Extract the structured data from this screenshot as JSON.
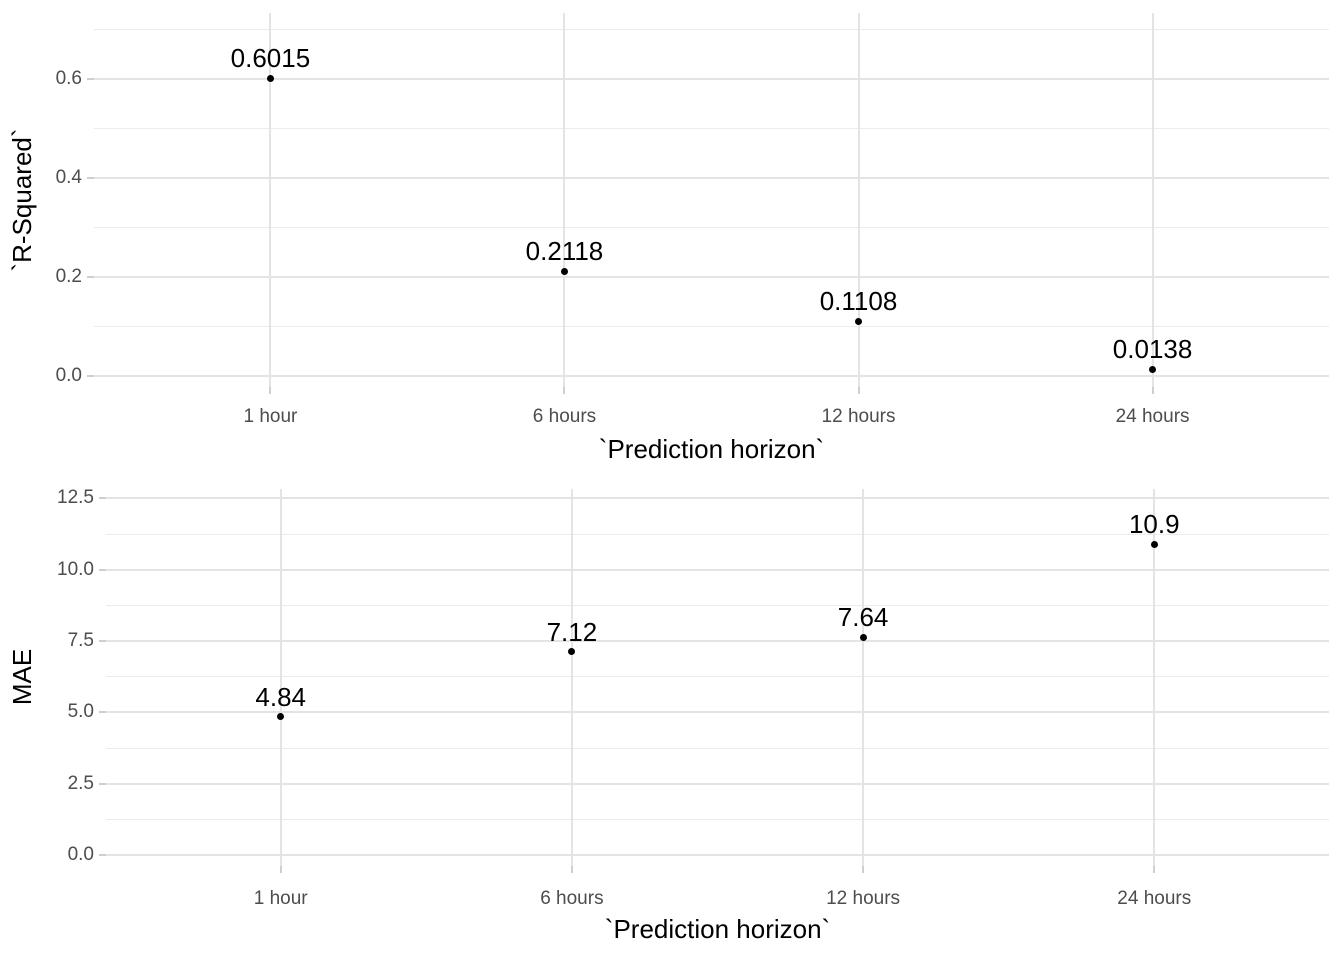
{
  "colors": {
    "background": "#ffffff",
    "grid_major": "#e4e4e4",
    "grid_minor": "#ececec",
    "tick_mark": "#cfcfcf",
    "tick_text": "#4d4d4d",
    "axis_title_text": "#000000",
    "point": "#000000",
    "point_label_text": "#000000"
  },
  "chart_data": [
    {
      "type": "scatter",
      "title": "",
      "xlabel": "`Prediction horizon`",
      "ylabel": "`R-Squared`",
      "categories": [
        "1 hour",
        "6 hours",
        "12 hours",
        "24 hours"
      ],
      "values": [
        0.6015,
        0.2118,
        0.1108,
        0.0138
      ],
      "point_labels": [
        "0.6015",
        "0.2118",
        "0.1108",
        "0.0138"
      ],
      "yticks": [
        0,
        0.2,
        0.4,
        0.6
      ],
      "ytick_labels": [
        "0.0",
        "0.2",
        "0.4",
        "0.6"
      ],
      "yticks_minor": [
        0.1,
        0.3,
        0.5,
        0.7
      ],
      "ylim": [
        -0.0222,
        0.7333
      ],
      "grid": "major+minor",
      "legend": "none"
    },
    {
      "type": "scatter",
      "title": "",
      "xlabel": "`Prediction horizon`",
      "ylabel": "MAE",
      "categories": [
        "1 hour",
        "6 hours",
        "12 hours",
        "24 hours"
      ],
      "values": [
        4.84,
        7.12,
        7.64,
        10.9
      ],
      "point_labels": [
        "4.84",
        "7.12",
        "7.64",
        "10.9"
      ],
      "yticks": [
        0,
        2.5,
        5,
        7.5,
        10,
        12.5
      ],
      "ytick_labels": [
        "0.0",
        "2.5",
        "5.0",
        "7.5",
        "10.0",
        "12.5"
      ],
      "yticks_minor": [
        1.25,
        3.75,
        6.25,
        8.75,
        11.25
      ],
      "ylim": [
        -0.386,
        12.833
      ],
      "grid": "major+minor",
      "legend": "none"
    }
  ]
}
